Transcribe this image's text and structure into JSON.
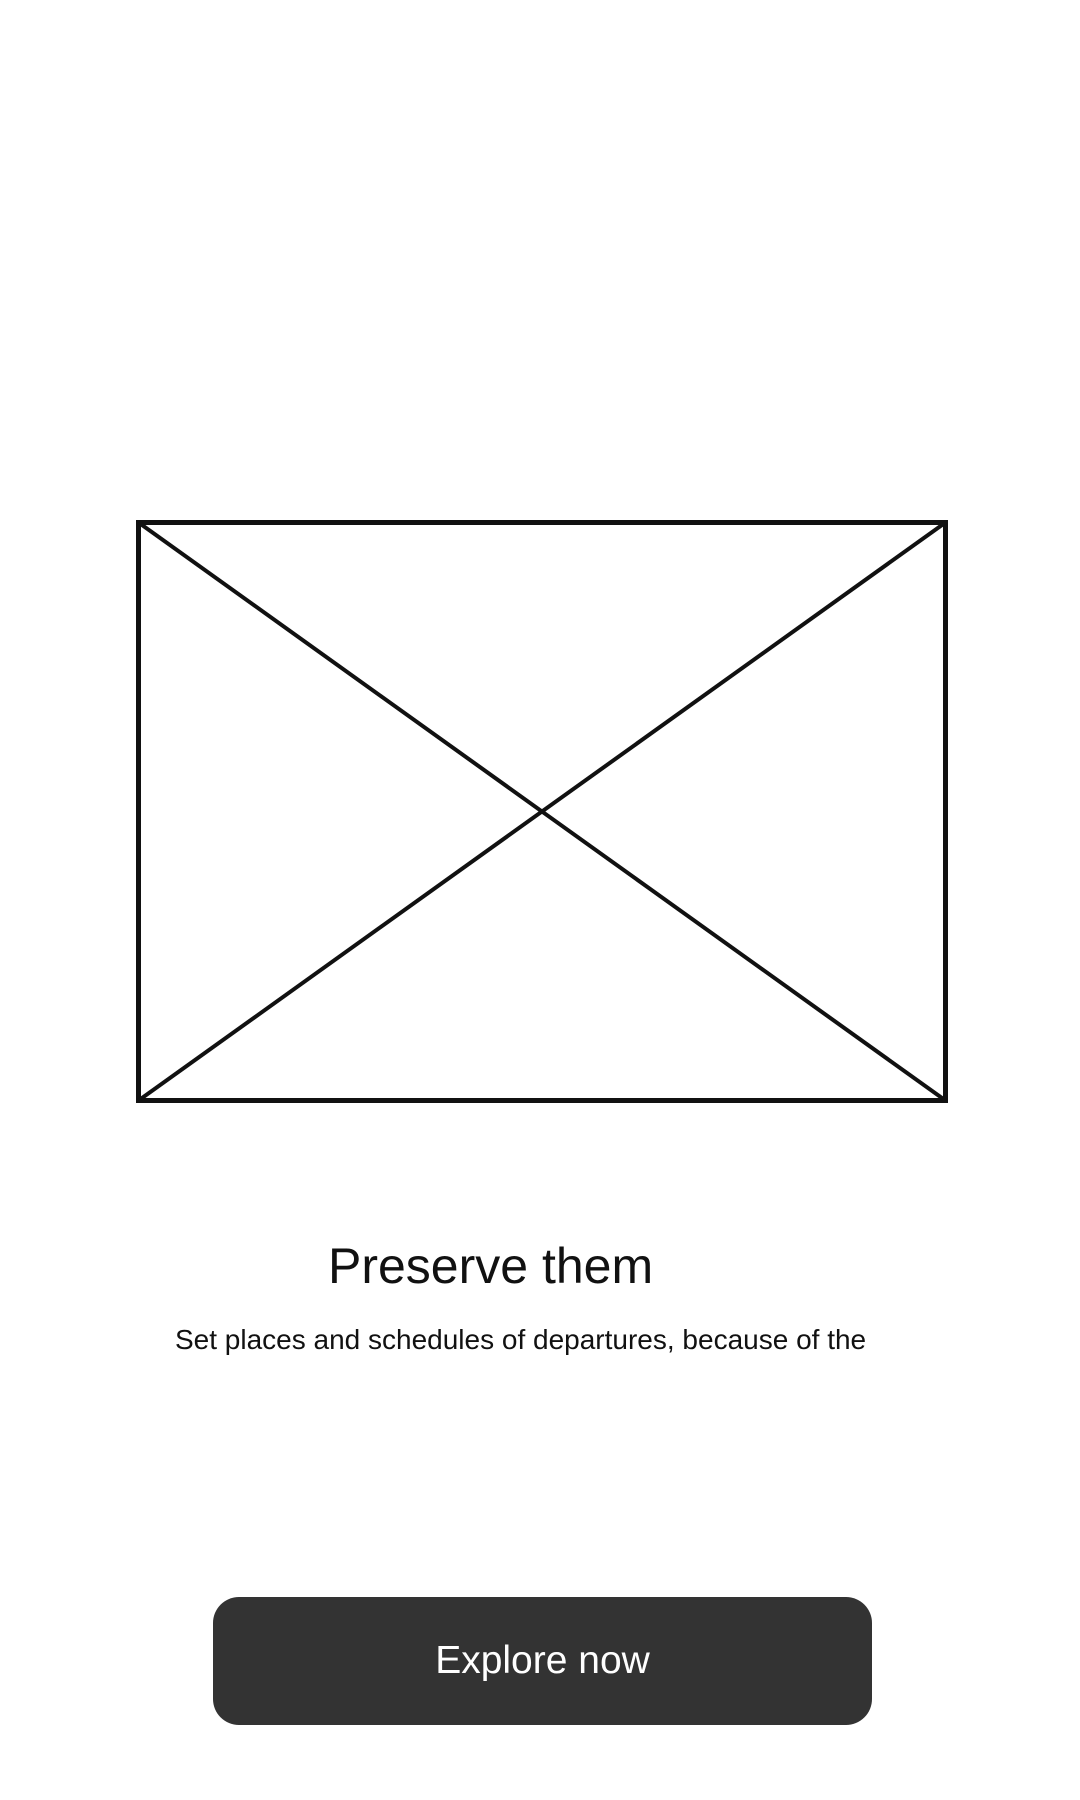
{
  "onboarding": {
    "title": "Preserve them",
    "description": "Set places and schedules of departures, because of the",
    "cta_label": "Explore now"
  },
  "hero": {
    "icon": "image-placeholder-icon",
    "stroke_color": "#111111"
  },
  "colors": {
    "background": "#ffffff",
    "button_background": "#333333",
    "button_text": "#ffffff",
    "text": "#111111"
  }
}
